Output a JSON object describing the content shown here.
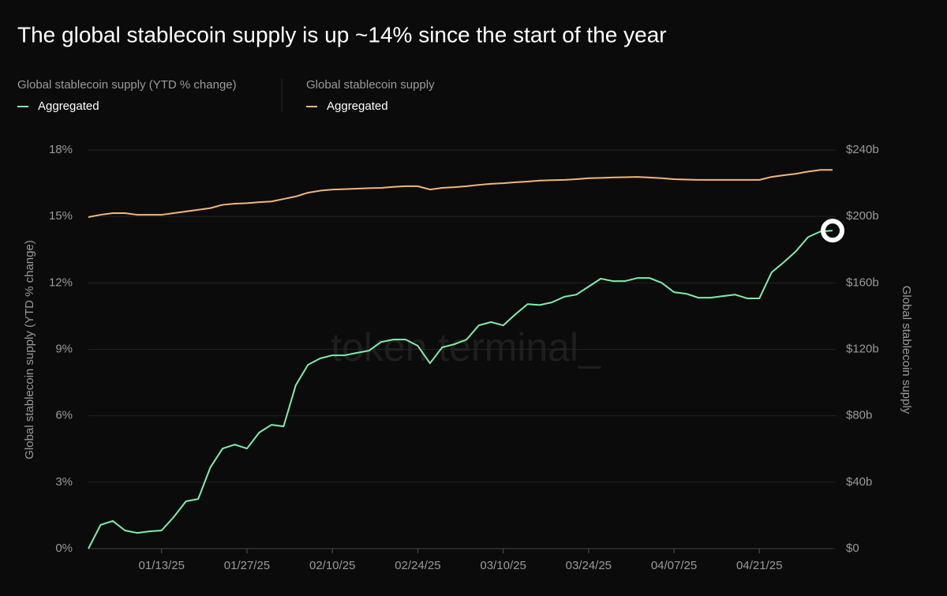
{
  "chart_data": {
    "type": "line",
    "title": "The global stablecoin supply is up ~14% since the start of the year",
    "ylabel": "Global stablecoin supply (YTD % change)",
    "y2label": "Global stablecoin supply",
    "watermark": "token terminal_",
    "x": [
      "01/01/25",
      "01/03/25",
      "01/05/25",
      "01/07/25",
      "01/09/25",
      "01/11/25",
      "01/13/25",
      "01/15/25",
      "01/17/25",
      "01/19/25",
      "01/21/25",
      "01/23/25",
      "01/25/25",
      "01/27/25",
      "01/29/25",
      "01/31/25",
      "02/02/25",
      "02/04/25",
      "02/06/25",
      "02/08/25",
      "02/10/25",
      "02/12/25",
      "02/14/25",
      "02/16/25",
      "02/18/25",
      "02/20/25",
      "02/22/25",
      "02/24/25",
      "02/26/25",
      "02/28/25",
      "03/02/25",
      "03/04/25",
      "03/06/25",
      "03/08/25",
      "03/10/25",
      "03/12/25",
      "03/14/25",
      "03/16/25",
      "03/18/25",
      "03/20/25",
      "03/22/25",
      "03/24/25",
      "03/26/25",
      "03/28/25",
      "03/30/25",
      "04/01/25",
      "04/03/25",
      "04/05/25",
      "04/07/25",
      "04/09/25",
      "04/11/25",
      "04/13/25",
      "04/15/25",
      "04/17/25",
      "04/19/25",
      "04/21/25",
      "04/23/25",
      "04/25/25",
      "04/27/25",
      "04/29/25",
      "05/01/25",
      "05/03/25"
    ],
    "xticks": [
      "01/13/25",
      "01/27/25",
      "02/10/25",
      "02/24/25",
      "03/10/25",
      "03/24/25",
      "04/07/25",
      "04/21/25"
    ],
    "series": [
      {
        "name": "Aggregated",
        "color": "#7df0a6",
        "axis": "y",
        "values": [
          0,
          1.07,
          1.25,
          0.82,
          0.71,
          0.78,
          0.82,
          1.43,
          2.14,
          2.24,
          3.67,
          4.52,
          4.7,
          4.52,
          5.24,
          5.59,
          5.52,
          7.38,
          8.3,
          8.59,
          8.73,
          8.73,
          8.84,
          8.94,
          9.33,
          9.44,
          9.44,
          9.16,
          8.37,
          9.09,
          9.23,
          9.44,
          10.08,
          10.23,
          10.08,
          10.58,
          11.04,
          11.0,
          11.12,
          11.37,
          11.47,
          11.83,
          12.19,
          12.08,
          12.08,
          12.22,
          12.22,
          12.0,
          11.58,
          11.51,
          11.33,
          11.33,
          11.4,
          11.47,
          11.3,
          11.3,
          12.47,
          12.93,
          13.43,
          14.07,
          14.32,
          14.36
        ]
      },
      {
        "name": "Aggregated",
        "color": "#f3b77a",
        "axis": "y2",
        "values": [
          199.6,
          201,
          202,
          202,
          201,
          201,
          201,
          202,
          203,
          204,
          205,
          207,
          207.7,
          208,
          208.6,
          209,
          210.5,
          212,
          214.3,
          215.5,
          216.2,
          216.4,
          216.7,
          217,
          217.2,
          217.8,
          218.2,
          218.2,
          216.2,
          217.2,
          217.6,
          218.2,
          219,
          219.6,
          220,
          220.6,
          221,
          221.6,
          221.8,
          222,
          222.4,
          223,
          223.2,
          223.5,
          223.6,
          223.8,
          223.4,
          223,
          222.4,
          222.2,
          222,
          222,
          222,
          222,
          222,
          222,
          223.8,
          224.8,
          225.7,
          227,
          228,
          228
        ]
      }
    ],
    "ylim": [
      0,
      18
    ],
    "yticks": [
      {
        "value": 0,
        "label": "0%"
      },
      {
        "value": 3,
        "label": "3%"
      },
      {
        "value": 6,
        "label": "6%"
      },
      {
        "value": 9,
        "label": "9%"
      },
      {
        "value": 12,
        "label": "12%"
      },
      {
        "value": 15,
        "label": "15%"
      },
      {
        "value": 18,
        "label": "18%"
      }
    ],
    "y2lim": [
      0,
      240
    ],
    "y2ticks": [
      {
        "value": 0,
        "label": "$0"
      },
      {
        "value": 40,
        "label": "$40b"
      },
      {
        "value": 80,
        "label": "$80b"
      },
      {
        "value": 120,
        "label": "$120b"
      },
      {
        "value": 160,
        "label": "$160b"
      },
      {
        "value": 200,
        "label": "$200b"
      },
      {
        "value": 240,
        "label": "$240b"
      }
    ],
    "grid": true
  }
}
